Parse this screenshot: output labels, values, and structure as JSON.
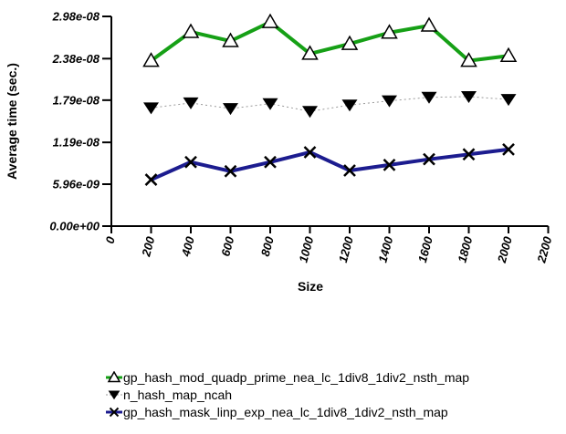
{
  "chart_data": {
    "type": "line",
    "title": "",
    "xlabel": "Size",
    "ylabel": "Average time (sec.)",
    "xlim": [
      0,
      2200
    ],
    "ylim": [
      0,
      2.98e-08
    ],
    "grid": false,
    "legend_position": "bottom-left",
    "xticks": [
      0,
      200,
      400,
      600,
      800,
      1000,
      1200,
      1400,
      1600,
      1800,
      2000,
      2200
    ],
    "ytick_values": [
      0,
      5.96e-09,
      1.19e-08,
      1.79e-08,
      2.38e-08,
      2.98e-08
    ],
    "ytick_labels": [
      "0.00e+00",
      "5.96e-09",
      "1.19e-08",
      "1.79e-08",
      "2.38e-08",
      "2.98e-08"
    ],
    "x": [
      200,
      400,
      600,
      800,
      1000,
      1200,
      1400,
      1600,
      1800,
      2000
    ],
    "series": [
      {
        "name": "gp_hash_mod_quadp_prime_nea_lc_1div8_1div2_nsth_map",
        "color": "#16a016",
        "line_style": "solid",
        "line_width": 4,
        "marker": "triangle-up-open",
        "marker_color": "#000000",
        "values": [
          2.35e-08,
          2.76e-08,
          2.63e-08,
          2.9e-08,
          2.45e-08,
          2.59e-08,
          2.75e-08,
          2.85e-08,
          2.35e-08,
          2.42e-08
        ]
      },
      {
        "name": "n_hash_map_ncah",
        "color": "#999999",
        "line_style": "dotted",
        "line_width": 1,
        "marker": "triangle-down-filled",
        "marker_color": "#000000",
        "values": [
          1.68e-08,
          1.75e-08,
          1.67e-08,
          1.74e-08,
          1.63e-08,
          1.72e-08,
          1.78e-08,
          1.83e-08,
          1.84e-08,
          1.8e-08
        ]
      },
      {
        "name": "gp_hash_mask_linp_exp_nea_lc_1div8_1div2_nsth_map",
        "color": "#1c1c8f",
        "line_style": "solid",
        "line_width": 4,
        "marker": "x-cross",
        "marker_color": "#000000",
        "values": [
          6.6e-09,
          9.1e-09,
          7.8e-09,
          9.1e-09,
          1.05e-08,
          7.9e-09,
          8.7e-09,
          9.5e-09,
          1.02e-08,
          1.09e-08
        ]
      }
    ],
    "axis_color": "#000000",
    "background_color": "#ffffff"
  }
}
